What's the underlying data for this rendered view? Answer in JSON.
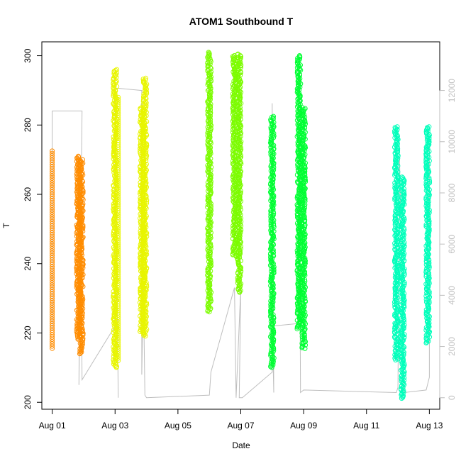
{
  "chart_data": {
    "type": "scatter",
    "title": "ATOM1 Southbound T",
    "xlabel": "Date",
    "ylabel": "T",
    "x_ticks": [
      "Aug 01",
      "Aug 03",
      "Aug 05",
      "Aug 07",
      "Aug 09",
      "Aug 11",
      "Aug 13"
    ],
    "y_ticks": [
      "200",
      "220",
      "240",
      "260",
      "280",
      "300"
    ],
    "y2_ticks": [
      "0",
      "2000",
      "4000",
      "6000",
      "8000",
      "10000",
      "12000"
    ],
    "ylim": [
      198,
      304
    ],
    "y2lim": [
      -450,
      13900
    ],
    "xlim": [
      -0.33,
      12.33
    ],
    "x_unit": "days since Aug 01",
    "secondary_axis_color": "#bebebe",
    "grid": false,
    "legend": "none",
    "series": [
      {
        "name": "",
        "color": "#ff8c00",
        "bands": [
          {
            "x": 0.0,
            "y_min": 215.5,
            "y_max": 272.5,
            "dense": false
          },
          {
            "x": 0.83,
            "y_min": 218,
            "y_max": 271,
            "dense": true
          },
          {
            "x": 0.93,
            "y_min": 214,
            "y_max": 270,
            "dense": true
          }
        ]
      },
      {
        "name": "",
        "color": "#e8f500",
        "bands": [
          {
            "x": 2.0,
            "y_min": 210,
            "y_max": 296,
            "dense": true
          },
          {
            "x": 2.1,
            "y_min": 212,
            "y_max": 288,
            "dense": false
          },
          {
            "x": 2.85,
            "y_min": 220,
            "y_max": 285,
            "dense": true
          },
          {
            "x": 2.95,
            "y_min": 219,
            "y_max": 293.5,
            "dense": true
          }
        ]
      },
      {
        "name": "",
        "color": "#7cfc00",
        "bands": [
          {
            "x": 5.0,
            "y_min": 226,
            "y_max": 301,
            "dense": true
          },
          {
            "x": 5.8,
            "y_min": 242,
            "y_max": 300,
            "dense": true
          },
          {
            "x": 5.95,
            "y_min": 231.5,
            "y_max": 300.5,
            "dense": true
          }
        ]
      },
      {
        "name": "",
        "color": "#00ff33",
        "bands": [
          {
            "x": 7.0,
            "y_min": 210,
            "y_max": 282.5,
            "dense": true
          },
          {
            "x": 7.85,
            "y_min": 221,
            "y_max": 300,
            "dense": true
          },
          {
            "x": 8.0,
            "y_min": 215.5,
            "y_max": 285,
            "dense": true
          }
        ]
      },
      {
        "name": "",
        "color": "#00ffbb",
        "bands": [
          {
            "x": 10.95,
            "y_min": 212,
            "y_max": 279.5,
            "dense": true
          },
          {
            "x": 11.15,
            "y_min": 201,
            "y_max": 265,
            "dense": true
          },
          {
            "x": 11.95,
            "y_min": 217,
            "y_max": 279.5,
            "dense": true
          }
        ]
      }
    ],
    "secondary_series": {
      "name": "",
      "color": "#bebebe",
      "type": "line",
      "points": [
        [
          0.0,
          2600
        ],
        [
          0.0,
          11200
        ],
        [
          0.5,
          11200
        ],
        [
          0.5,
          11200
        ],
        [
          0.95,
          11200
        ],
        [
          0.85,
          500
        ],
        [
          0.9,
          9200
        ],
        [
          0.95,
          700
        ],
        [
          2.0,
          2800
        ],
        [
          2.0,
          12600
        ],
        [
          2.1,
          0
        ],
        [
          2.0,
          12100
        ],
        [
          2.85,
          12000
        ],
        [
          2.85,
          900
        ],
        [
          2.9,
          4500
        ],
        [
          2.95,
          100
        ],
        [
          3.0,
          0
        ],
        [
          5.0,
          100
        ],
        [
          5.05,
          1000
        ],
        [
          5.8,
          4300
        ],
        [
          5.85,
          0
        ],
        [
          6.0,
          4300
        ],
        [
          5.95,
          0
        ],
        [
          6.05,
          0
        ],
        [
          7.0,
          1000
        ],
        [
          7.0,
          11500
        ],
        [
          7.05,
          200
        ],
        [
          7.0,
          2800
        ],
        [
          7.85,
          2900
        ],
        [
          7.85,
          12400
        ],
        [
          7.9,
          200
        ],
        [
          8.0,
          300
        ],
        [
          10.95,
          200
        ],
        [
          11.0,
          400
        ],
        [
          11.05,
          9400
        ],
        [
          11.2,
          200
        ],
        [
          11.9,
          300
        ],
        [
          12.0,
          800
        ],
        [
          12.0,
          9900
        ]
      ]
    }
  }
}
